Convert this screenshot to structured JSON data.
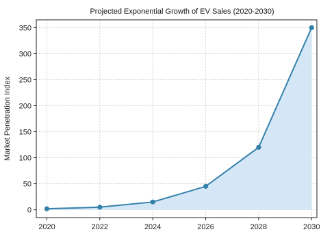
{
  "chart_data": {
    "type": "line",
    "title": "Projected Exponential Growth of EV Sales (2020-2030)",
    "xlabel": "",
    "ylabel": "Market Penetration Index",
    "x": [
      2020,
      2022,
      2024,
      2026,
      2028,
      2030
    ],
    "series": [
      {
        "values": [
          2,
          5,
          15,
          45,
          120,
          350
        ]
      }
    ],
    "xticks": [
      "2020",
      "2022",
      "2024",
      "2026",
      "2028",
      "2030"
    ],
    "yticks": [
      0,
      50,
      100,
      150,
      200,
      250,
      300,
      350
    ],
    "xlim": [
      2019.6,
      2030.2
    ],
    "ylim": [
      -15,
      365
    ],
    "grid": true,
    "fill_under": true,
    "colors": {
      "line": "#3380aa",
      "fill": "#d5e7f7",
      "marker": "#3380aa",
      "grid": "#c8c8c8",
      "axis": "#222222"
    }
  }
}
